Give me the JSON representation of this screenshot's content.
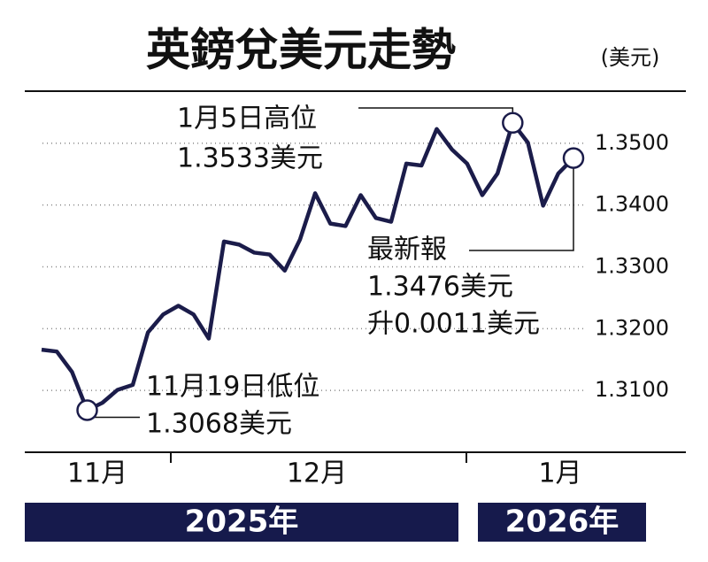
{
  "chart_data": {
    "type": "line",
    "title": "英鎊兌美元走勢",
    "unit": "(美元)",
    "color": "#1b1c4a",
    "values": [
      1.3166,
      1.3163,
      1.313,
      1.3068,
      1.308,
      1.3101,
      1.3109,
      1.3194,
      1.3223,
      1.3237,
      1.3223,
      1.3184,
      1.3341,
      1.3336,
      1.3323,
      1.332,
      1.3294,
      1.3344,
      1.3419,
      1.337,
      1.3366,
      1.3416,
      1.3379,
      1.3373,
      1.3467,
      1.3464,
      1.3523,
      1.349,
      1.3467,
      1.3416,
      1.3451,
      1.3533,
      1.3501,
      1.3399,
      1.3451,
      1.3476
    ],
    "ylim": [
      1.3,
      1.3585
    ],
    "yticks": [
      {
        "value": 1.35,
        "label": "1.3500"
      },
      {
        "value": 1.34,
        "label": "1.3400"
      },
      {
        "value": 1.33,
        "label": "1.3300"
      },
      {
        "value": 1.32,
        "label": "1.3200"
      },
      {
        "value": 1.31,
        "label": "1.3100"
      }
    ],
    "grid": true,
    "months": [
      "11月",
      "12月",
      "1月"
    ],
    "years": [
      "2025年",
      "2026年"
    ],
    "annotations": {
      "high": [
        "1月5日高位",
        "1.3533美元"
      ],
      "low": [
        "11月19日低位",
        "1.3068美元"
      ],
      "latest": [
        "最新報",
        "1.3476美元",
        "升0.0011美元"
      ]
    }
  }
}
